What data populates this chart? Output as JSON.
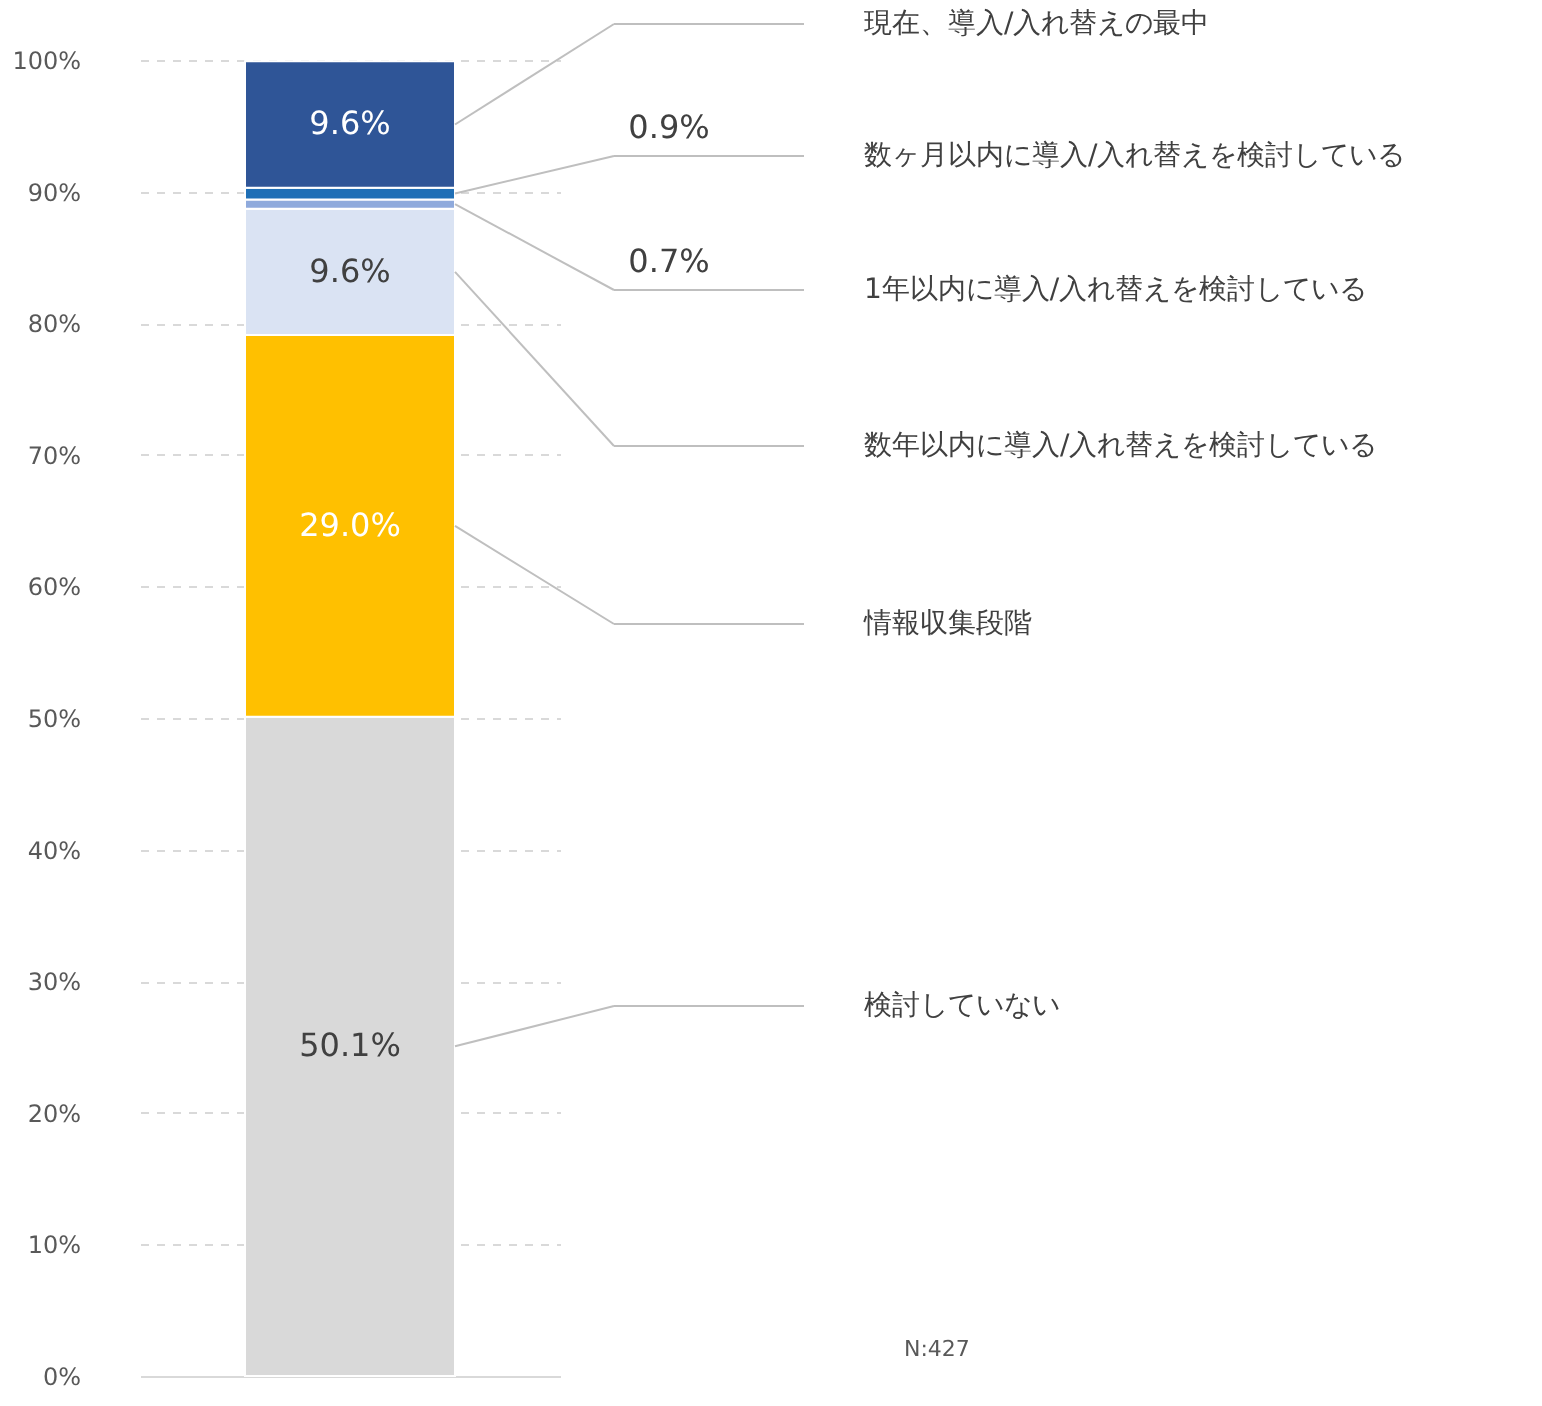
{
  "chart_data": {
    "type": "bar",
    "stacked": true,
    "categories": [
      null
    ],
    "series": [
      {
        "name": "検討していない",
        "color": "#d9d9d9",
        "values": [
          50.1
        ],
        "value_labels": [
          "50.1%"
        ]
      },
      {
        "name": "情報収集段階",
        "color": "#ffc000",
        "values": [
          29.0
        ],
        "value_labels": [
          "29.0%"
        ]
      },
      {
        "name": "数年以内に導入/入れ替えを検討している",
        "color": "#dae3f3",
        "values": [
          9.6
        ],
        "value_labels": [
          "9.6%"
        ]
      },
      {
        "name": "1年以内に導入/入れ替えを検討している",
        "color": "#8faadc",
        "values": [
          0.7
        ],
        "value_labels": [
          "0.7%"
        ]
      },
      {
        "name": "数ヶ月以内に導入/入れ替えを検討している",
        "color": "#1f6fb6",
        "values": [
          0.9
        ],
        "value_labels": [
          "0.9%"
        ]
      },
      {
        "name": "現在、導入/入れ替えの最中",
        "color": "#2f5597",
        "values": [
          9.6
        ],
        "value_labels": [
          "9.6%"
        ]
      }
    ],
    "ylim": [
      0,
      100
    ],
    "yticks": [
      {
        "value": 0,
        "label": "0%"
      },
      {
        "value": 10,
        "label": "10%"
      },
      {
        "value": 20,
        "label": "20%"
      },
      {
        "value": 30,
        "label": "30%"
      },
      {
        "value": 40,
        "label": "40%"
      },
      {
        "value": 50,
        "label": "50%"
      },
      {
        "value": 60,
        "label": "60%"
      },
      {
        "value": 70,
        "label": "70%"
      },
      {
        "value": 80,
        "label": "80%"
      },
      {
        "value": 90,
        "label": "90%"
      },
      {
        "value": 100,
        "label": "100%"
      }
    ],
    "grid": "y",
    "legend": false,
    "tick_labels": "y",
    "annotations": [
      "N:427"
    ]
  }
}
